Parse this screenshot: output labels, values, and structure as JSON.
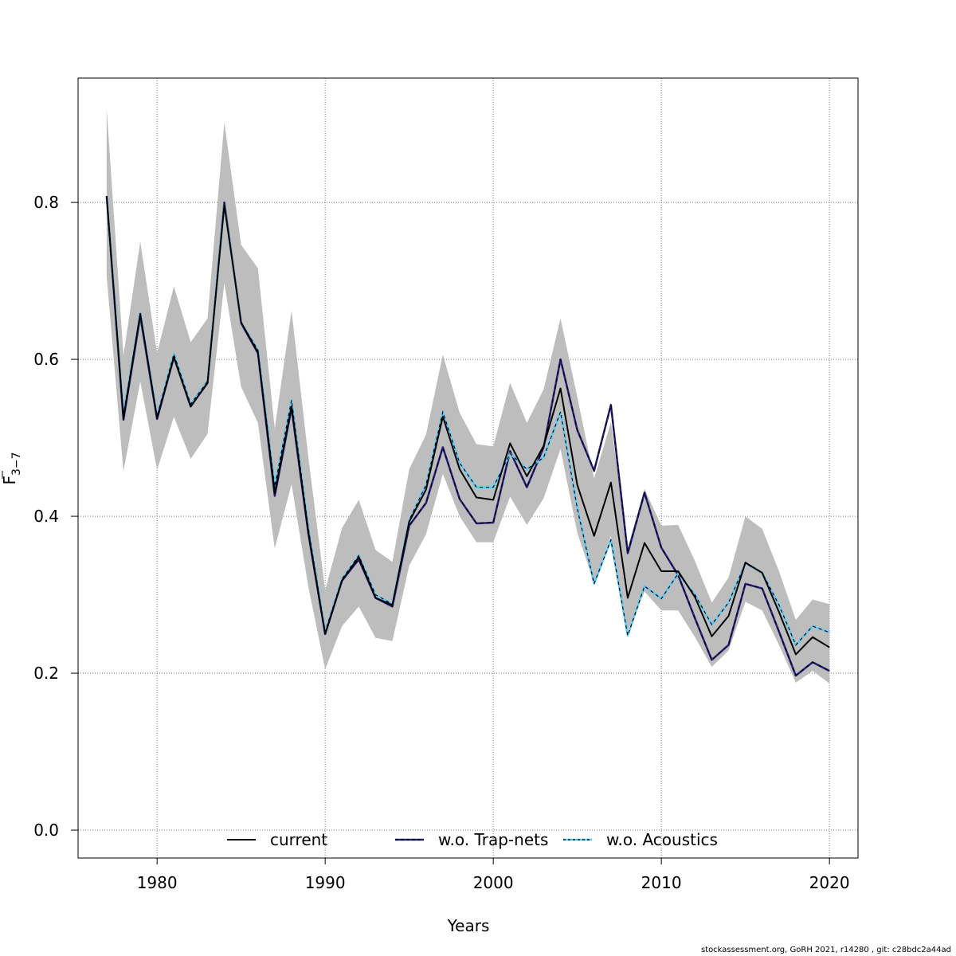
{
  "footer_text": "stockassessment.org, GoRH  2021, r14280 , git: c28bdc2a44ad",
  "chart_data": {
    "type": "line",
    "xlabel": "Years",
    "ylabel_main": "F",
    "ylabel_sub": "3−7",
    "xlim": [
      1975.3,
      2021.7
    ],
    "ylim": [
      -0.0355,
      0.9585
    ],
    "x_ticks": [
      1980,
      1990,
      2000,
      2010,
      2020
    ],
    "x_tick_labels": [
      "1980",
      "1990",
      "2000",
      "2010",
      "2020"
    ],
    "y_ticks": [
      0.0,
      0.2,
      0.4,
      0.6,
      0.8
    ],
    "y_tick_labels": [
      "0.0",
      "0.2",
      "0.4",
      "0.6",
      "0.8"
    ],
    "grid": true,
    "legend_position": "bottom",
    "x": [
      1977,
      1978,
      1979,
      1980,
      1981,
      1982,
      1983,
      1984,
      1985,
      1986,
      1987,
      1988,
      1989,
      1990,
      1991,
      1992,
      1993,
      1994,
      1995,
      1996,
      1997,
      1998,
      1999,
      2000,
      2001,
      2002,
      2003,
      2004,
      2005,
      2006,
      2007,
      2008,
      2009,
      2010,
      2011,
      2012,
      2013,
      2014,
      2015,
      2016,
      2017,
      2018,
      2019,
      2020
    ],
    "band_upper": [
      0.92,
      0.605,
      0.75,
      0.608,
      0.693,
      0.622,
      0.652,
      0.902,
      0.746,
      0.716,
      0.512,
      0.662,
      0.475,
      0.306,
      0.385,
      0.421,
      0.357,
      0.342,
      0.46,
      0.504,
      0.606,
      0.532,
      0.492,
      0.489,
      0.57,
      0.519,
      0.562,
      0.652,
      0.552,
      0.448,
      0.52,
      0.36,
      0.435,
      0.388,
      0.389,
      0.343,
      0.29,
      0.322,
      0.4,
      0.384,
      0.33,
      0.268,
      0.294,
      0.288
    ],
    "band_lower": [
      0.706,
      0.457,
      0.572,
      0.459,
      0.527,
      0.473,
      0.505,
      0.697,
      0.565,
      0.519,
      0.359,
      0.441,
      0.31,
      0.205,
      0.26,
      0.285,
      0.245,
      0.241,
      0.337,
      0.377,
      0.454,
      0.4,
      0.367,
      0.367,
      0.425,
      0.389,
      0.423,
      0.486,
      0.379,
      0.315,
      0.375,
      0.254,
      0.304,
      0.28,
      0.28,
      0.246,
      0.208,
      0.229,
      0.291,
      0.28,
      0.236,
      0.188,
      0.203,
      0.187
    ],
    "series": [
      {
        "name": "current",
        "color": "#000000",
        "dash": "",
        "values": [
          0.808,
          0.525,
          0.658,
          0.525,
          0.603,
          0.54,
          0.57,
          0.797,
          0.647,
          0.609,
          0.43,
          0.54,
          0.38,
          0.25,
          0.318,
          0.348,
          0.296,
          0.287,
          0.393,
          0.434,
          0.527,
          0.46,
          0.424,
          0.421,
          0.493,
          0.451,
          0.49,
          0.563,
          0.44,
          0.375,
          0.443,
          0.296,
          0.366,
          0.33,
          0.33,
          0.297,
          0.247,
          0.273,
          0.341,
          0.328,
          0.278,
          0.224,
          0.246,
          0.233
        ]
      },
      {
        "name": "w.o. Trap-nets",
        "color": "#27207a",
        "dash": "5,4",
        "values": [
          0.808,
          0.523,
          0.655,
          0.524,
          0.603,
          0.54,
          0.57,
          0.8,
          0.646,
          0.608,
          0.426,
          0.538,
          0.378,
          0.25,
          0.318,
          0.345,
          0.296,
          0.285,
          0.388,
          0.417,
          0.488,
          0.422,
          0.391,
          0.392,
          0.483,
          0.437,
          0.488,
          0.6,
          0.51,
          0.458,
          0.542,
          0.353,
          0.43,
          0.36,
          0.325,
          0.27,
          0.217,
          0.236,
          0.314,
          0.308,
          0.253,
          0.197,
          0.214,
          0.203
        ]
      },
      {
        "name": "w.o. Acoustics",
        "color": "#5bc8f5",
        "dash": "4,4",
        "values": [
          0.808,
          0.53,
          0.659,
          0.528,
          0.607,
          0.543,
          0.572,
          0.797,
          0.647,
          0.612,
          0.438,
          0.548,
          0.385,
          0.253,
          0.32,
          0.35,
          0.3,
          0.288,
          0.395,
          0.44,
          0.533,
          0.468,
          0.437,
          0.437,
          0.48,
          0.46,
          0.475,
          0.533,
          0.41,
          0.314,
          0.37,
          0.248,
          0.311,
          0.295,
          0.327,
          0.3,
          0.262,
          0.29,
          0.34,
          0.328,
          0.287,
          0.236,
          0.26,
          0.252
        ]
      }
    ]
  }
}
